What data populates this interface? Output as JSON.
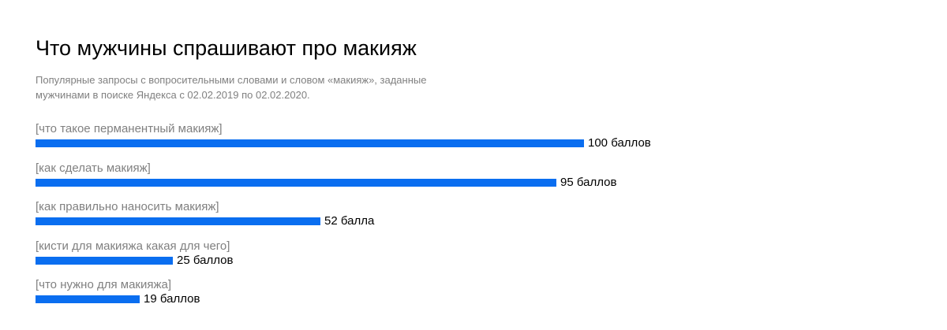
{
  "header": {
    "title": "Что мужчины спрашивают про макияж",
    "subtitle": "Популярные запросы с вопросительными словами и словом «макияж», заданные мужчинами в поиске Яндекса с 02.02.2019 по 02.02.2020."
  },
  "colors": {
    "bar": "#0a6ef0",
    "label": "#808080",
    "value": "#000000"
  },
  "chart_data": {
    "type": "bar",
    "orientation": "horizontal",
    "title": "Что мужчины спрашивают про макияж",
    "subtitle": "Популярные запросы с вопросительными словами и словом «макияж», заданные мужчинами в поиске Яндекса с 02.02.2019 по 02.02.2020.",
    "categories": [
      "[что такое перманентный макияж]",
      "[как сделать макияж]",
      "[как правильно наносить макияж]",
      "[кисти для макияжа какая для чего]",
      "[что нужно для макияжа]"
    ],
    "values": [
      100,
      95,
      52,
      25,
      19
    ],
    "value_labels": [
      "100 баллов",
      "95 баллов",
      "52 балла",
      "25 баллов",
      "19 баллов"
    ],
    "xlim": [
      0,
      100
    ],
    "grid": false,
    "legend": "none"
  }
}
